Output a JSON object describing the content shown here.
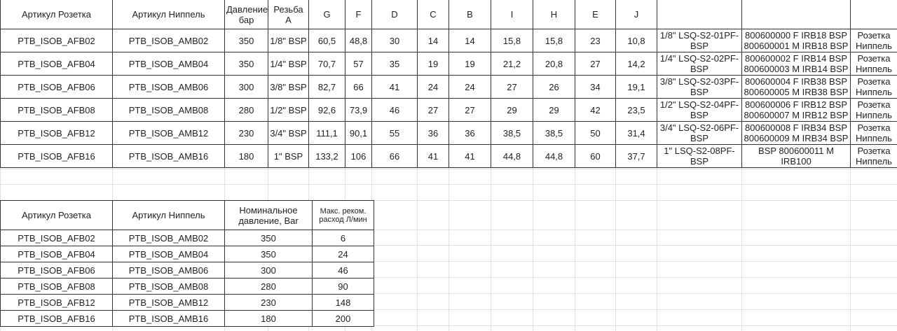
{
  "table1": {
    "headers": [
      "Артикул Розетка",
      "Артикул Ниппель",
      "Давление, бар",
      "Резьба А",
      "G",
      "F",
      "D",
      "C",
      "B",
      "I",
      "H",
      "E",
      "J",
      "",
      "",
      ""
    ],
    "rows": [
      [
        "PTB_ISOB_AFB02",
        "PTB_ISOB_AMB02",
        "350",
        "1/8\" BSP",
        "60,5",
        "48,8",
        "30",
        "14",
        "14",
        "15,8",
        "15,8",
        "23",
        "10,8",
        "1/8\" LSQ-S2-01PF-BSP",
        "800600000 F IRB18 BSP 800600001 M IRB18 BSP",
        "Розетка Ниппель"
      ],
      [
        "PTB_ISOB_AFB04",
        "PTB_ISOB_AMB04",
        "350",
        "1/4\" BSP",
        "70,7",
        "57",
        "35",
        "19",
        "19",
        "21,2",
        "20,8",
        "27",
        "14,2",
        "1/4\" LSQ-S2-02PF-BSP",
        "800600002 F IRB14 BSP 800600003 M IRB14 BSP",
        "Розетка Ниппель"
      ],
      [
        "PTB_ISOB_AFB06",
        "PTB_ISOB_AMB06",
        "300",
        "3/8\" BSP",
        "82,7",
        "66",
        "41",
        "24",
        "24",
        "27",
        "26",
        "34",
        "19,1",
        "3/8\" LSQ-S2-03PF-BSP",
        "800600004 F IRB38 BSP 800600005 M IRB38 BSP",
        "Розетка Ниппель"
      ],
      [
        "PTB_ISOB_AFB08",
        "PTB_ISOB_AMB08",
        "280",
        "1/2\" BSP",
        "92,6",
        "73,9",
        "46",
        "27",
        "27",
        "29",
        "29",
        "42",
        "23,5",
        "1/2\" LSQ-S2-04PF-BSP",
        "800600006 F IRB12 BSP 800600007 M IRB12 BSP",
        "Розетка Ниппель"
      ],
      [
        "PTB_ISOB_AFB12",
        "PTB_ISOB_AMB12",
        "230",
        "3/4\" BSP",
        "111,1",
        "90,1",
        "55",
        "36",
        "36",
        "38,5",
        "38,5",
        "50",
        "31,4",
        "3/4\" LSQ-S2-06PF-BSP",
        "800600008 F IRB34 BSP 800600009 M IRB34 BSP",
        "Розетка Ниппель"
      ],
      [
        "PTB_ISOB_AFB16",
        "PTB_ISOB_AMB16",
        "180",
        "1\" BSP",
        "133,2",
        "106",
        "66",
        "41",
        "41",
        "44,8",
        "44,8",
        "60",
        "37,7",
        "1\" LSQ-S2-08PF-BSP",
        "BSP 800600011 M IRB100",
        "Розетка Ниппель"
      ]
    ]
  },
  "table2": {
    "headers": [
      "Артикул Розетка",
      "Артикул Ниппель",
      "Номинальное давление, Bar",
      "Макс. реком. расход Л/мин"
    ],
    "rows": [
      [
        "PTB_ISOB_AFB02",
        "PTB_ISOB_AMB02",
        "350",
        "6"
      ],
      [
        "PTB_ISOB_AFB04",
        "PTB_ISOB_AMB04",
        "350",
        "24"
      ],
      [
        "PTB_ISOB_AFB06",
        "PTB_ISOB_AMB06",
        "300",
        "46"
      ],
      [
        "PTB_ISOB_AFB08",
        "PTB_ISOB_AMB08",
        "280",
        "90"
      ],
      [
        "PTB_ISOB_AFB12",
        "PTB_ISOB_AMB12",
        "230",
        "148"
      ],
      [
        "PTB_ISOB_AFB16",
        "PTB_ISOB_AMB16",
        "180",
        "200"
      ]
    ]
  }
}
